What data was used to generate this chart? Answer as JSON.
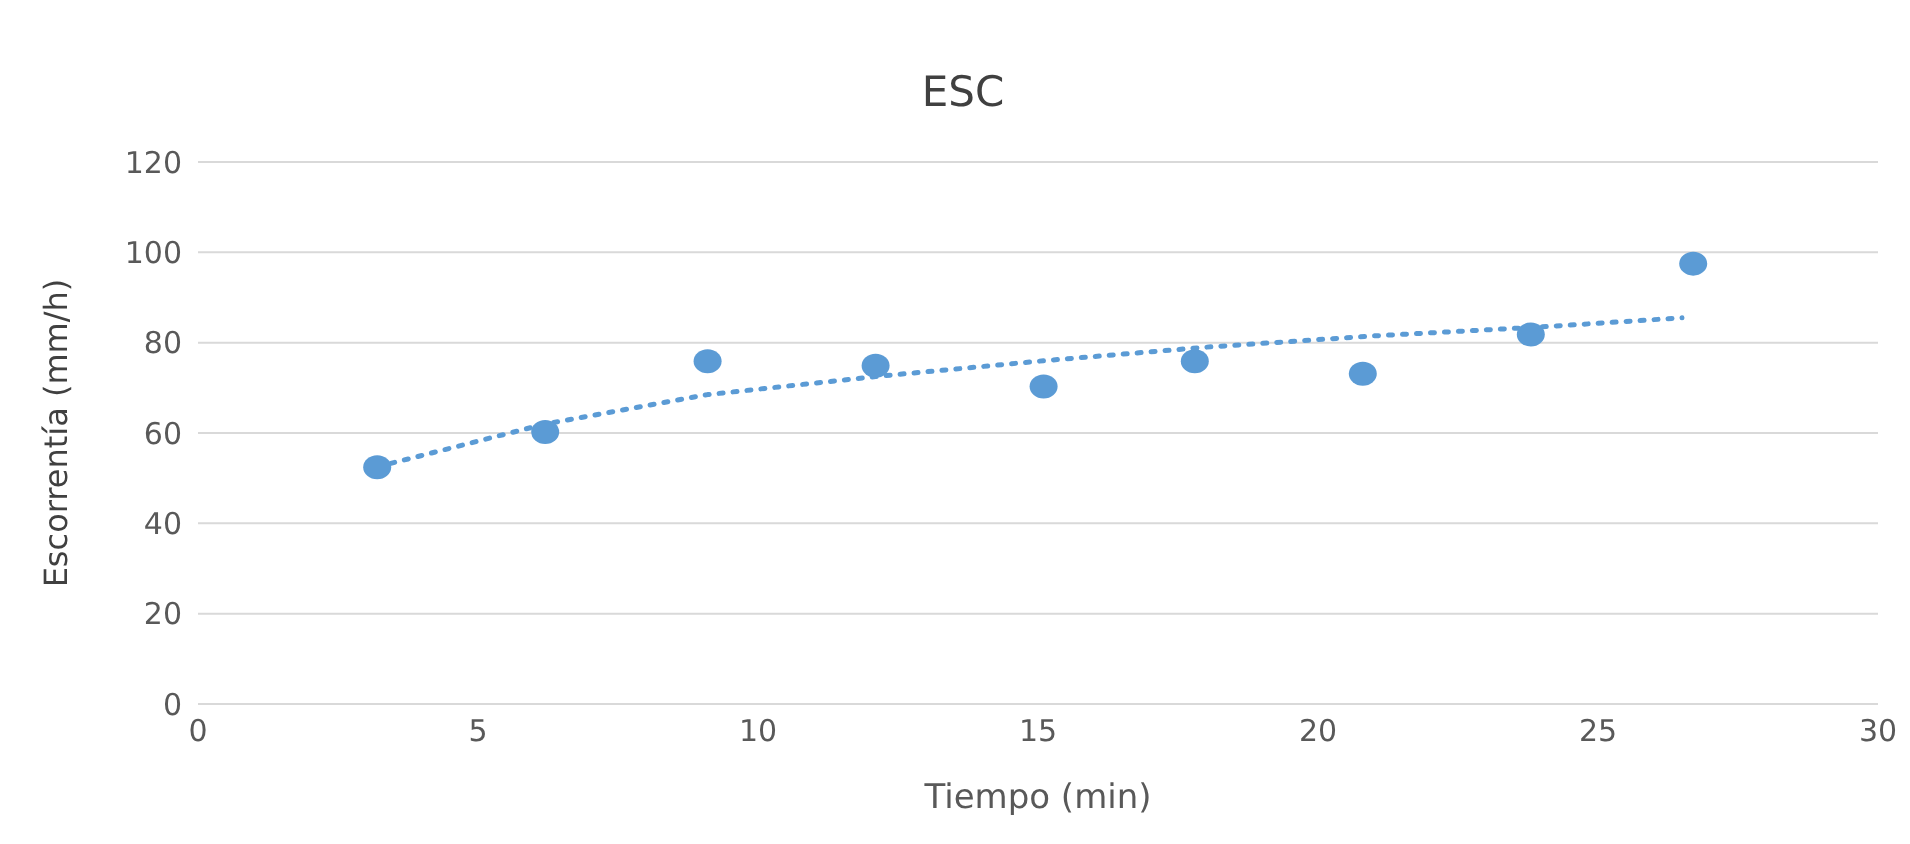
{
  "chart_data": {
    "type": "scatter",
    "title": "ESC",
    "xlabel": "Tiempo (min)",
    "ylabel": "Escorrentía (mm/h)",
    "xlim": [
      0,
      30
    ],
    "xticks": [
      0,
      5,
      10,
      15,
      20,
      25,
      30
    ],
    "ylim": [
      0,
      120
    ],
    "yticks": [
      0,
      20,
      40,
      60,
      80,
      100,
      120
    ],
    "grid": "y",
    "marker": "circle",
    "series": [
      {
        "color": "#5b9bd5",
        "x": [
          3.2,
          6.2,
          9.1,
          12.1,
          15.1,
          17.8,
          20.8,
          23.8,
          26.7
        ],
        "values": [
          52.4,
          60.2,
          75.9,
          74.9,
          70.3,
          75.9,
          73.1,
          81.8,
          97.5
        ]
      },
      {
        "type": "line",
        "color": "#5b9bd5",
        "line_style": "dotted",
        "marker": "none",
        "x": [
          3.2,
          6.2,
          9.1,
          12.1,
          15.1,
          18,
          21,
          24,
          26.5
        ],
        "values": [
          52.5,
          62,
          68.5,
          72.5,
          76,
          79,
          81.5,
          83.5,
          85.5
        ]
      }
    ]
  }
}
